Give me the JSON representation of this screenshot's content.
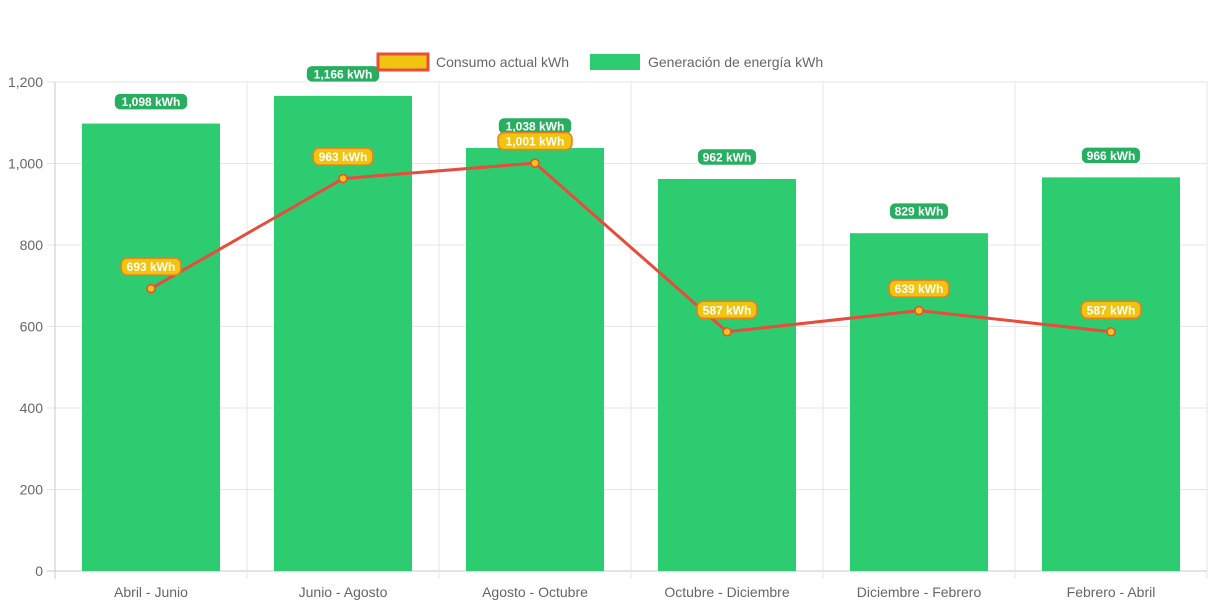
{
  "chart_data": {
    "type": "bar",
    "categories": [
      "Abril - Junio",
      "Junio - Agosto",
      "Agosto - Octubre",
      "Octubre - Diciembre",
      "Diciembre - Febrero",
      "Febrero - Abril"
    ],
    "series": [
      {
        "name": "Consumo actual kWh",
        "type": "line",
        "values": [
          693,
          963,
          1001,
          587,
          639,
          587
        ],
        "labels": [
          "693 kWh",
          "963 kWh",
          "1,001 kWh",
          "587 kWh",
          "639 kWh",
          "587 kWh"
        ],
        "color": "#e74c3c",
        "fill": "#f1c40f"
      },
      {
        "name": "Generación de energía kWh",
        "type": "bar",
        "values": [
          1098,
          1166,
          1038,
          962,
          829,
          966
        ],
        "labels": [
          "1,098 kWh",
          "1,166 kWh",
          "1,038 kWh",
          "962 kWh",
          "829 kWh",
          "966 kWh"
        ],
        "color": "#2ecc71"
      }
    ],
    "ylim": [
      0,
      1200
    ],
    "yticks": [
      "0",
      "200",
      "400",
      "600",
      "800",
      "1,000",
      "1,200"
    ],
    "grid": true,
    "legend_position": "top"
  }
}
